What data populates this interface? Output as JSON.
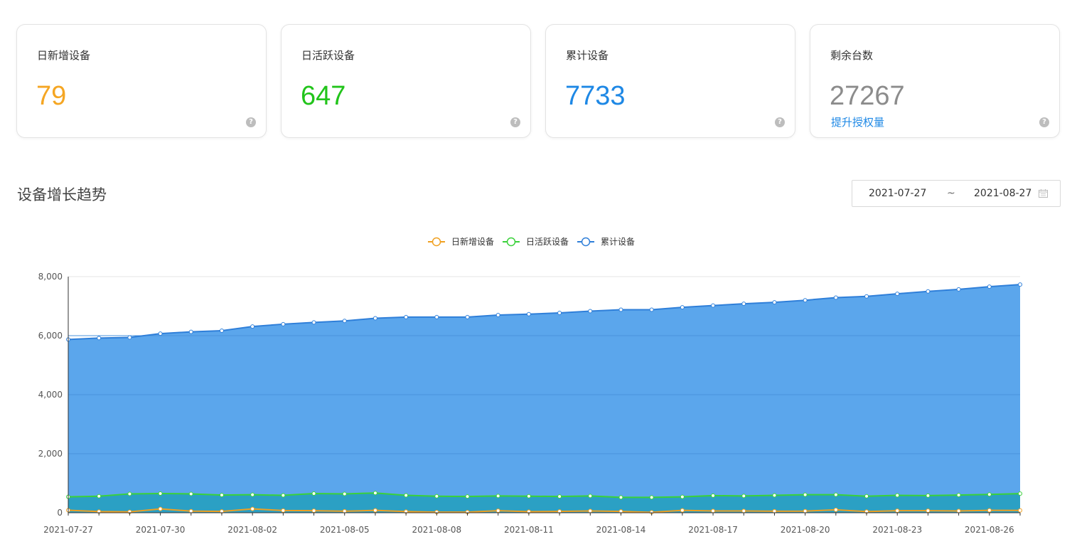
{
  "cards": [
    {
      "label": "日新增设备",
      "value": "79",
      "color": "#f5a623"
    },
    {
      "label": "日活跃设备",
      "value": "647",
      "color": "#22c41b"
    },
    {
      "label": "累计设备",
      "value": "7733",
      "color": "#1e88e5"
    },
    {
      "label": "剩余台数",
      "value": "27267",
      "color": "#8c8c8c",
      "link": "提升授权量"
    }
  ],
  "help_icon": "?",
  "section_title": "设备增长趋势",
  "date_range": {
    "start": "2021-07-27",
    "separator": "~",
    "end": "2021-08-27",
    "icon": "calendar-icon"
  },
  "chart_data": {
    "type": "area",
    "x": [
      "2021-07-27",
      "2021-07-28",
      "2021-07-29",
      "2021-07-30",
      "2021-07-31",
      "2021-08-01",
      "2021-08-02",
      "2021-08-03",
      "2021-08-04",
      "2021-08-05",
      "2021-08-06",
      "2021-08-07",
      "2021-08-08",
      "2021-08-09",
      "2021-08-10",
      "2021-08-11",
      "2021-08-12",
      "2021-08-13",
      "2021-08-14",
      "2021-08-15",
      "2021-08-16",
      "2021-08-17",
      "2021-08-18",
      "2021-08-19",
      "2021-08-20",
      "2021-08-21",
      "2021-08-22",
      "2021-08-23",
      "2021-08-24",
      "2021-08-25",
      "2021-08-26",
      "2021-08-27"
    ],
    "x_tick_labels": [
      "2021-07-27",
      "2021-07-30",
      "2021-08-02",
      "2021-08-05",
      "2021-08-08",
      "2021-08-11",
      "2021-08-14",
      "2021-08-17",
      "2021-08-20",
      "2021-08-23",
      "2021-08-26"
    ],
    "ylim": [
      0,
      8000
    ],
    "y_ticks": [
      0,
      2000,
      4000,
      6000,
      8000
    ],
    "y_tick_labels": [
      "0",
      "2,000",
      "4,000",
      "6,000",
      "8,000"
    ],
    "grid": true,
    "legend_position": "top-center",
    "series": [
      {
        "name": "累计设备",
        "color": "#2f7fd9",
        "fill": "#5ba6ec",
        "values": [
          5870,
          5920,
          5940,
          6070,
          6130,
          6170,
          6310,
          6390,
          6450,
          6500,
          6590,
          6630,
          6630,
          6630,
          6700,
          6730,
          6770,
          6830,
          6880,
          6880,
          6960,
          7020,
          7080,
          7130,
          7200,
          7290,
          7330,
          7420,
          7500,
          7570,
          7660,
          7733
        ]
      },
      {
        "name": "日活跃设备",
        "color": "#3ad13a",
        "fill": "#2ba0c4",
        "values": [
          540,
          560,
          640,
          650,
          640,
          600,
          610,
          590,
          650,
          640,
          670,
          590,
          560,
          550,
          570,
          560,
          550,
          570,
          520,
          520,
          540,
          580,
          570,
          590,
          610,
          610,
          560,
          590,
          580,
          600,
          620,
          647
        ]
      },
      {
        "name": "日新增设备",
        "color": "#f0a020",
        "fill": "#2ba0c4",
        "values": [
          85,
          40,
          30,
          130,
          55,
          45,
          130,
          75,
          70,
          50,
          80,
          40,
          20,
          20,
          70,
          35,
          45,
          60,
          45,
          15,
          80,
          60,
          60,
          50,
          55,
          100,
          40,
          70,
          70,
          60,
          80,
          79
        ]
      }
    ],
    "legend": [
      "日新增设备",
      "日活跃设备",
      "累计设备"
    ]
  }
}
